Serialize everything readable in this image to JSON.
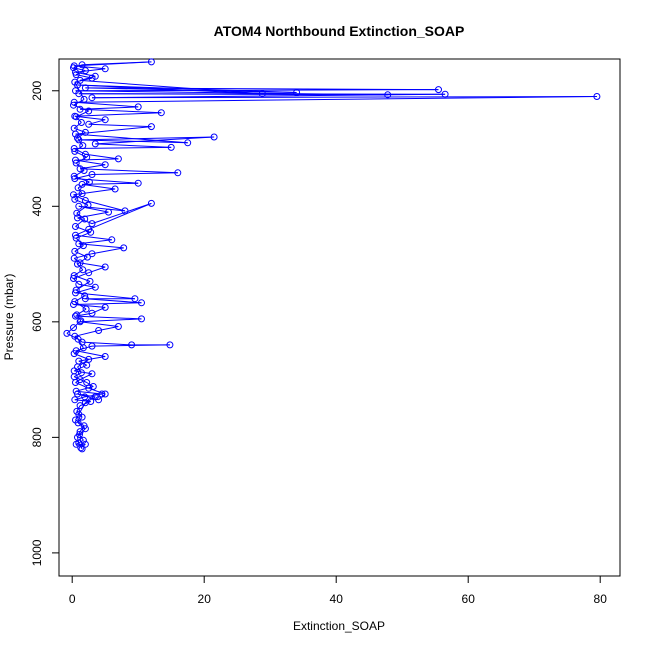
{
  "chart_data": {
    "type": "scatter",
    "title": "ATOM4 Northbound Extinction_SOAP",
    "xlabel": "Extinction_SOAP",
    "ylabel": "Pressure (mbar)",
    "xlim": [
      -2,
      83
    ],
    "ylim": [
      1040,
      145
    ],
    "y_reversed": true,
    "grid": false,
    "x_ticks": [
      0,
      20,
      40,
      60,
      80
    ],
    "y_ticks": [
      200,
      400,
      600,
      800,
      1000
    ],
    "series": [
      {
        "color": "#0000ff",
        "marker": "open-circle",
        "connected": true,
        "points": [
          [
            1.5,
            820
          ],
          [
            1.0,
            810
          ],
          [
            0.8,
            800
          ],
          [
            1.2,
            790
          ],
          [
            1.8,
            780
          ],
          [
            0.5,
            770
          ],
          [
            1.0,
            760
          ],
          [
            2.0,
            740
          ],
          [
            3.5,
            730
          ],
          [
            0.8,
            725
          ],
          [
            4.0,
            735
          ],
          [
            5.0,
            725
          ],
          [
            2.5,
            715
          ],
          [
            0.5,
            705
          ],
          [
            1.2,
            700
          ],
          [
            3.0,
            690
          ],
          [
            0.3,
            685
          ],
          [
            2.2,
            675
          ],
          [
            1.0,
            668
          ],
          [
            5.0,
            660
          ],
          [
            0.6,
            650
          ],
          [
            3.0,
            642
          ],
          [
            14.8,
            640
          ],
          [
            9.0,
            640
          ],
          [
            1.5,
            635
          ],
          [
            0.4,
            625
          ],
          [
            4.0,
            615
          ],
          [
            7.0,
            608
          ],
          [
            1.2,
            600
          ],
          [
            10.5,
            595
          ],
          [
            0.5,
            590
          ],
          [
            3.0,
            585
          ],
          [
            5.0,
            575
          ],
          [
            0.2,
            570
          ],
          [
            10.5,
            567
          ],
          [
            2.0,
            560
          ],
          [
            9.5,
            560
          ],
          [
            0.5,
            550
          ],
          [
            3.5,
            540
          ],
          [
            1.0,
            535
          ],
          [
            0.2,
            525
          ],
          [
            2.5,
            515
          ],
          [
            5.0,
            505
          ],
          [
            1.2,
            498
          ],
          [
            0.3,
            490
          ],
          [
            3.0,
            482
          ],
          [
            7.8,
            472
          ],
          [
            1.0,
            465
          ],
          [
            6.0,
            458
          ],
          [
            0.5,
            450
          ],
          [
            2.5,
            440
          ],
          [
            12.0,
            395
          ],
          [
            3.0,
            430
          ],
          [
            0.8,
            420
          ],
          [
            5.5,
            410
          ],
          [
            1.0,
            400
          ],
          [
            8.0,
            408
          ],
          [
            2.0,
            390
          ],
          [
            0.2,
            380
          ],
          [
            6.5,
            370
          ],
          [
            1.5,
            362
          ],
          [
            10.0,
            360
          ],
          [
            0.4,
            352
          ],
          [
            3.0,
            345
          ],
          [
            16.0,
            342
          ],
          [
            1.2,
            335
          ],
          [
            5.0,
            328
          ],
          [
            0.5,
            320
          ],
          [
            7.0,
            318
          ],
          [
            2.0,
            310
          ],
          [
            0.3,
            300
          ],
          [
            15.0,
            298
          ],
          [
            3.5,
            292
          ],
          [
            21.5,
            280
          ],
          [
            1.0,
            285
          ],
          [
            17.5,
            290
          ],
          [
            0.5,
            275
          ],
          [
            12.0,
            262
          ],
          [
            2.5,
            258
          ],
          [
            5.0,
            250
          ],
          [
            0.4,
            244
          ],
          [
            13.5,
            238
          ],
          [
            1.2,
            232
          ],
          [
            10.0,
            228
          ],
          [
            0.3,
            220
          ],
          [
            79.5,
            210
          ],
          [
            3.0,
            212
          ],
          [
            56.5,
            206
          ],
          [
            1.0,
            205
          ],
          [
            47.8,
            207
          ],
          [
            0.5,
            200
          ],
          [
            55.5,
            198
          ],
          [
            2.0,
            195
          ],
          [
            34.0,
            203
          ],
          [
            0.8,
            190
          ],
          [
            28.8,
            205
          ],
          [
            1.2,
            182
          ],
          [
            3.5,
            175
          ],
          [
            0.5,
            168
          ],
          [
            5.0,
            162
          ],
          [
            0.3,
            157
          ],
          [
            12.0,
            150
          ],
          [
            1.5,
            155
          ],
          [
            0.2,
            160
          ],
          [
            2.0,
            165
          ],
          [
            0.6,
            172
          ],
          [
            3.0,
            178
          ],
          [
            0.4,
            185
          ],
          [
            1.8,
            215
          ],
          [
            0.2,
            225
          ],
          [
            2.5,
            235
          ],
          [
            0.6,
            245
          ],
          [
            1.4,
            255
          ],
          [
            0.3,
            265
          ],
          [
            2.0,
            272
          ],
          [
            0.8,
            282
          ],
          [
            1.6,
            295
          ],
          [
            0.4,
            305
          ],
          [
            2.2,
            315
          ],
          [
            0.6,
            325
          ],
          [
            1.8,
            338
          ],
          [
            0.3,
            348
          ],
          [
            2.6,
            358
          ],
          [
            0.9,
            368
          ],
          [
            1.5,
            378
          ],
          [
            0.4,
            388
          ],
          [
            2.4,
            398
          ],
          [
            0.7,
            412
          ],
          [
            1.9,
            422
          ],
          [
            0.5,
            435
          ],
          [
            2.8,
            445
          ],
          [
            0.6,
            455
          ],
          [
            1.7,
            468
          ],
          [
            0.4,
            478
          ],
          [
            2.3,
            488
          ],
          [
            0.8,
            500
          ],
          [
            1.6,
            510
          ],
          [
            0.3,
            520
          ],
          [
            2.7,
            530
          ],
          [
            0.6,
            545
          ],
          [
            1.9,
            555
          ],
          [
            0.4,
            565
          ],
          [
            2.1,
            578
          ],
          [
            0.7,
            588
          ],
          [
            1.3,
            598
          ],
          [
            0.2,
            610
          ],
          [
            -0.8,
            620
          ],
          [
            0.9,
            630
          ],
          [
            1.7,
            645
          ],
          [
            0.3,
            655
          ],
          [
            2.5,
            665
          ],
          [
            0.8,
            678
          ],
          [
            1.4,
            688
          ],
          [
            0.3,
            695
          ],
          [
            2.2,
            705
          ],
          [
            3.2,
            712
          ],
          [
            0.6,
            720
          ],
          [
            4.5,
            725
          ],
          [
            1.9,
            730
          ],
          [
            0.4,
            735
          ],
          [
            2.8,
            738
          ],
          [
            1.2,
            745
          ],
          [
            0.7,
            755
          ],
          [
            1.5,
            765
          ],
          [
            0.9,
            775
          ],
          [
            2.0,
            785
          ],
          [
            1.1,
            795
          ],
          [
            1.7,
            805
          ],
          [
            0.6,
            812
          ],
          [
            2.0,
            812
          ],
          [
            1.3,
            818
          ]
        ]
      }
    ]
  }
}
